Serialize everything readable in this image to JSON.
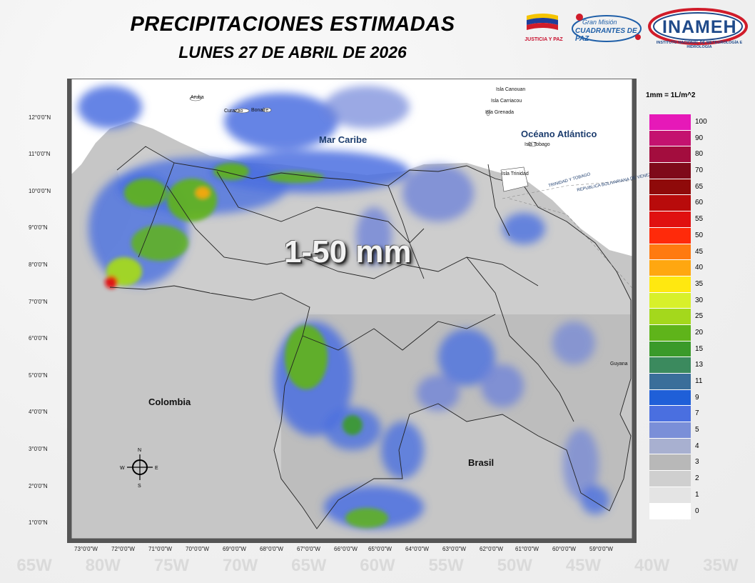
{
  "header": {
    "title": "PRECIPITACIONES ESTIMADAS",
    "date": "LUNES 27 DE ABRIL DE 2026"
  },
  "logos": {
    "justicia_paz": "JUSTICIA Y PAZ",
    "gran_mision_1": "Gran Misión",
    "gran_mision_2": "CUADRANTES DE PAZ",
    "inameh": "INAMEH",
    "inameh_full": "INSTITUTO NACIONAL DE METEOROLOGÍA E HIDROLOGÍA"
  },
  "map": {
    "range_label": "1-50 mm",
    "places": {
      "mar_caribe": "Mar Caribe",
      "oceano": "Océano Atlántico",
      "colombia": "Colombia",
      "brasil": "Brasil",
      "guyana": "Guyana",
      "aruba": "Aruba",
      "curazao": "Curazao",
      "bonaire": "Bonaire",
      "canouan": "Isla Canouan",
      "carriacou": "Isla Carriacou",
      "grenada": "Isla Grenada",
      "tobago": "Isla Tobago",
      "trinidad": "Isla Trinidad",
      "tt_line": "TRINIDAD Y TOBAGO",
      "ven_line": "REPUBLICA BOLIVARIANA DE VENEZUELA"
    },
    "lat_labels": [
      "12°0'0\"N",
      "11°0'0\"N",
      "10°0'0\"N",
      "9°0'0\"N",
      "8°0'0\"N",
      "7°0'0\"N",
      "6°0'0\"N",
      "5°0'0\"N",
      "4°0'0\"N",
      "3°0'0\"N",
      "2°0'0\"N",
      "1°0'0\"N"
    ],
    "lon_labels": [
      "73°0'0\"W",
      "72°0'0\"W",
      "71°0'0\"W",
      "70°0'0\"W",
      "69°0'0\"W",
      "68°0'0\"W",
      "67°0'0\"W",
      "66°0'0\"W",
      "65°0'0\"W",
      "64°0'0\"W",
      "63°0'0\"W",
      "62°0'0\"W",
      "61°0'0\"W",
      "60°0'0\"W",
      "59°0'0\"W"
    ],
    "compass": {
      "n": "N",
      "s": "S",
      "e": "E",
      "w": "W"
    }
  },
  "legend": {
    "unit": "1mm = 1L/m^2",
    "items": [
      {
        "label": "100",
        "color": "#e619b8"
      },
      {
        "label": "90",
        "color": "#c4126f"
      },
      {
        "label": "80",
        "color": "#a30d3e"
      },
      {
        "label": "70",
        "color": "#7f0a1a"
      },
      {
        "label": "65",
        "color": "#8f0a0a"
      },
      {
        "label": "60",
        "color": "#b80b0b"
      },
      {
        "label": "55",
        "color": "#e01010"
      },
      {
        "label": "50",
        "color": "#ff2a0a"
      },
      {
        "label": "45",
        "color": "#ff7a10"
      },
      {
        "label": "40",
        "color": "#ffa710"
      },
      {
        "label": "35",
        "color": "#ffe810"
      },
      {
        "label": "30",
        "color": "#d8f02a"
      },
      {
        "label": "25",
        "color": "#a4d81c"
      },
      {
        "label": "20",
        "color": "#5fb41a"
      },
      {
        "label": "15",
        "color": "#3a9a2a"
      },
      {
        "label": "13",
        "color": "#3b8a5e"
      },
      {
        "label": "11",
        "color": "#3a6e9a"
      },
      {
        "label": "9",
        "color": "#1f5fd8"
      },
      {
        "label": "7",
        "color": "#4a6fe0"
      },
      {
        "label": "5",
        "color": "#7a8fd8"
      },
      {
        "label": "4",
        "color": "#a8b0d0"
      },
      {
        "label": "3",
        "color": "#b8b8b8"
      },
      {
        "label": "2",
        "color": "#cfcfcf"
      },
      {
        "label": "1",
        "color": "#e4e4e4"
      },
      {
        "label": "0",
        "color": "#ffffff"
      }
    ]
  },
  "bottom_watermark": [
    "65W",
    "80W",
    "75W",
    "70W",
    "65W",
    "60W",
    "55W",
    "50W",
    "45W",
    "40W",
    "35W"
  ]
}
